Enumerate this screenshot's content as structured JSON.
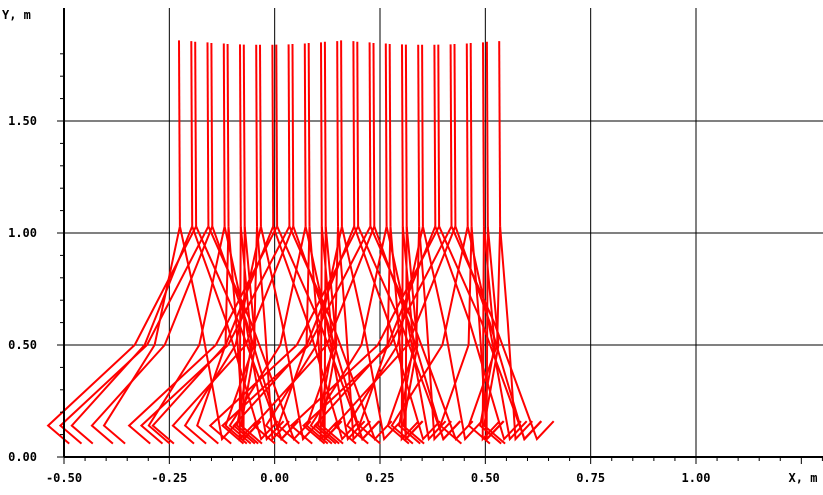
{
  "chart_data": {
    "type": "line",
    "title": "",
    "ylabel": "Y, m",
    "xlabel": "X, m",
    "xlim": [
      -0.5,
      1.5
    ],
    "ylim": [
      0,
      1.9
    ],
    "x_tick_labels": [
      "-0.50",
      "-0.25",
      "0.00",
      "0.25",
      "0.50",
      "0.75",
      "1.00",
      "X, m"
    ],
    "y_tick_labels": [
      "0.00",
      "0.50",
      "1.00",
      "1.50"
    ],
    "x_ticks": [
      -0.5,
      -0.25,
      0.0,
      0.25,
      0.5,
      0.75,
      1.0
    ],
    "y_ticks": [
      0.0,
      0.5,
      1.0,
      1.5
    ],
    "grid": true,
    "line_color": "#ff0000",
    "grid_color": "#000000",
    "frames": {
      "count": 40,
      "trunk_top_y": 1.86,
      "hip_y": 1.03,
      "hip_x_start": -0.225,
      "hip_x_end": 0.525,
      "foot_y": 0.06,
      "knee_y": 0.5
    }
  }
}
